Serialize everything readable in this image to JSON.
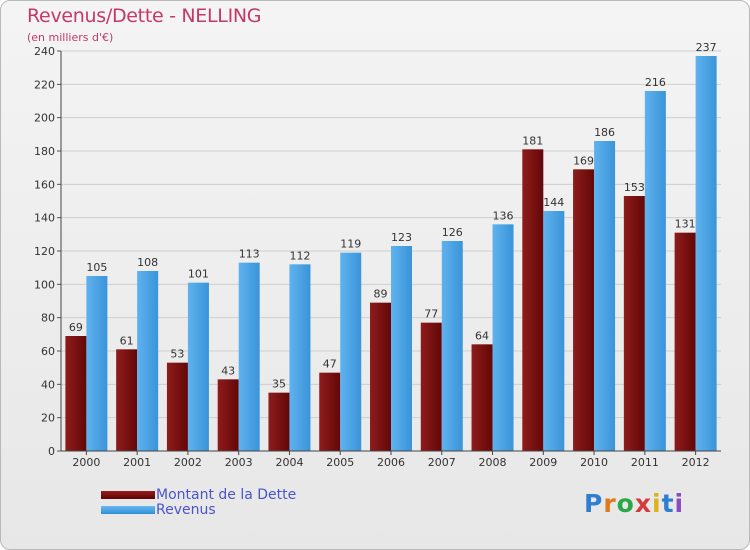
{
  "chart_data": {
    "type": "bar",
    "title": "Revenus/Dette - NELLING",
    "subtitle": "(en milliers d'€)",
    "categories": [
      "2000",
      "2001",
      "2002",
      "2003",
      "2004",
      "2005",
      "2006",
      "2007",
      "2008",
      "2009",
      "2010",
      "2011",
      "2012"
    ],
    "series": [
      {
        "name": "Montant de la Dette",
        "color": "#7a0f0f",
        "values": [
          69,
          61,
          53,
          43,
          35,
          47,
          89,
          77,
          64,
          181,
          169,
          153,
          131
        ]
      },
      {
        "name": "Revenus",
        "color": "#3f9ee2",
        "values": [
          105,
          108,
          101,
          113,
          112,
          119,
          123,
          126,
          136,
          144,
          186,
          216,
          237
        ]
      }
    ],
    "ylim": [
      0,
      240
    ],
    "yticks": [
      0,
      20,
      40,
      60,
      80,
      100,
      120,
      140,
      160,
      180,
      200,
      220,
      240
    ],
    "grid": true,
    "legend_position": "bottom-left"
  },
  "legend": {
    "debt_label": "Montant de la Dette",
    "revenue_label": "Revenus"
  },
  "logo": {
    "letters": [
      "P",
      "r",
      "o",
      "x",
      "i",
      "t",
      "i"
    ]
  }
}
